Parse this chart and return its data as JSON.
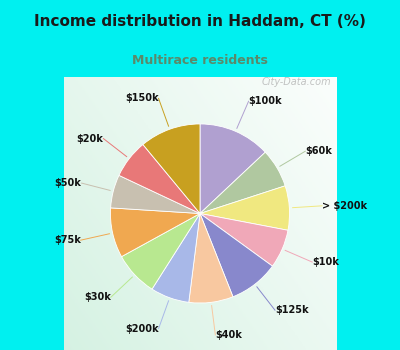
{
  "title": "Income distribution in Haddam, CT (%)",
  "subtitle": "Multirace residents",
  "title_color": "#1a1a1a",
  "subtitle_color": "#5a8a6a",
  "bg_cyan": "#00f0f0",
  "watermark": "City-Data.com",
  "labels": [
    "$100k",
    "$60k",
    "> $200k",
    "$10k",
    "$125k",
    "$40k",
    "$200k",
    "$30k",
    "$75k",
    "$50k",
    "$20k",
    "$150k"
  ],
  "values": [
    13,
    7,
    8,
    7,
    9,
    8,
    7,
    8,
    9,
    6,
    7,
    11
  ],
  "colors": [
    "#b0a0d0",
    "#b0c8a0",
    "#f0e880",
    "#f0a8b8",
    "#8888cc",
    "#f8c8a0",
    "#a8b8e8",
    "#b8e890",
    "#f0a850",
    "#c8c0b0",
    "#e87878",
    "#c8a020"
  ],
  "startangle": 90,
  "figsize": [
    4.0,
    3.5
  ],
  "dpi": 100
}
